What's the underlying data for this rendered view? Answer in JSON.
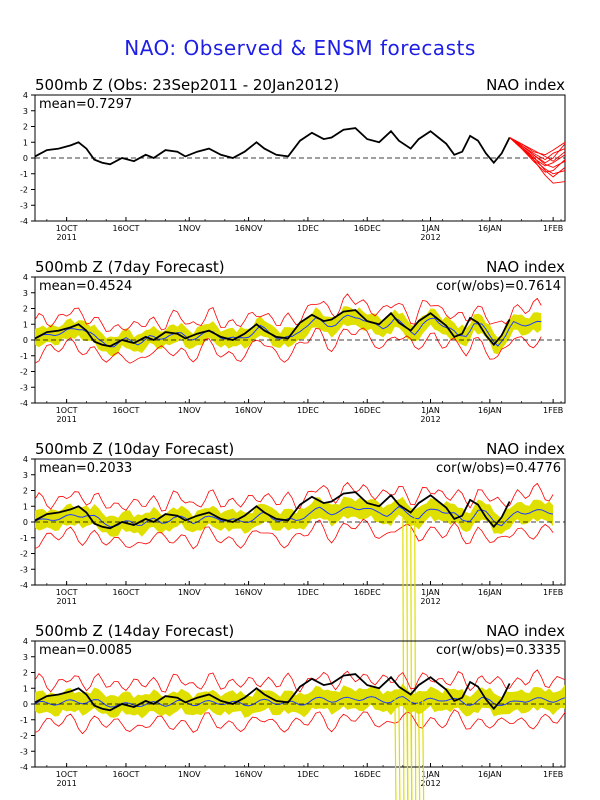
{
  "title": "NAO: Observed & ENSM forecasts",
  "colors": {
    "title": "#1e1ee6",
    "observed": "#000000",
    "members": "#ff0000",
    "spread": "#e0e000",
    "ensemble_mean": "#1e3cff",
    "zero_line": "#000000"
  },
  "x_axis": {
    "date_start": "23Sep2011",
    "ticks": [
      {
        "day": 8,
        "label": "1OCT",
        "year": "2011"
      },
      {
        "day": 23,
        "label": "16OCT",
        "year": ""
      },
      {
        "day": 39,
        "label": "1NOV",
        "year": ""
      },
      {
        "day": 54,
        "label": "16NOV",
        "year": ""
      },
      {
        "day": 69,
        "label": "1DEC",
        "year": ""
      },
      {
        "day": 84,
        "label": "16DEC",
        "year": ""
      },
      {
        "day": 100,
        "label": "1JAN",
        "year": "2012"
      },
      {
        "day": 115,
        "label": "16JAN",
        "year": ""
      },
      {
        "day": 131,
        "label": "1FEB",
        "year": ""
      }
    ],
    "range": [
      0,
      134
    ]
  },
  "observed_series": {
    "day": [
      0,
      3,
      6,
      9,
      11,
      13,
      15,
      17,
      19,
      22,
      25,
      28,
      30,
      33,
      36,
      38,
      41,
      44,
      47,
      50,
      53,
      56,
      58,
      61,
      64,
      67,
      70,
      73,
      75,
      78,
      81,
      84,
      87,
      90,
      92,
      95,
      97,
      100,
      102,
      104,
      106,
      108,
      110,
      112,
      114,
      116,
      118,
      120
    ],
    "value": [
      0.1,
      0.5,
      0.6,
      0.8,
      1.0,
      0.6,
      -0.1,
      -0.3,
      -0.4,
      0.0,
      -0.2,
      0.2,
      0.0,
      0.5,
      0.4,
      0.1,
      0.4,
      0.6,
      0.2,
      0.0,
      0.4,
      1.0,
      0.6,
      0.2,
      0.1,
      1.1,
      1.6,
      1.2,
      1.3,
      1.8,
      1.9,
      1.2,
      1.0,
      1.7,
      1.1,
      0.6,
      1.2,
      1.7,
      1.3,
      0.9,
      0.2,
      0.4,
      1.4,
      1.1,
      0.3,
      -0.3,
      0.3,
      1.3
    ]
  },
  "chart_data": [
    {
      "type": "line",
      "title": "500mb Z (Obs: 23Sep2011 - 20Jan2012)",
      "right_label": "NAO index",
      "mean_label": "mean=0.7297",
      "cor_label": "",
      "ylim": [
        -4,
        4
      ],
      "yticks": [
        -4,
        -3,
        -2,
        -1,
        0,
        1,
        2,
        3,
        4
      ],
      "xlabel": "",
      "ylabel": "",
      "kind": "observed",
      "forecast_members": {
        "start_day": 120,
        "start_value": 1.3,
        "days": [
          120,
          123,
          126,
          129,
          131,
          134
        ],
        "members": [
          [
            1.3,
            0.8,
            0.2,
            -0.4,
            -0.6,
            -0.2
          ],
          [
            1.3,
            0.7,
            0.1,
            -0.8,
            -1.2,
            -0.6
          ],
          [
            1.3,
            0.6,
            -0.1,
            -1.1,
            -1.6,
            -1.5
          ],
          [
            1.3,
            0.9,
            0.4,
            0.2,
            0.5,
            1.0
          ],
          [
            1.3,
            0.8,
            0.3,
            -0.1,
            0.3,
            0.6
          ],
          [
            1.3,
            0.7,
            0.0,
            -0.5,
            -0.3,
            0.2
          ],
          [
            1.3,
            0.6,
            -0.2,
            -0.9,
            -0.8,
            -0.1
          ],
          [
            1.3,
            0.9,
            0.5,
            0.1,
            -0.2,
            0.4
          ],
          [
            1.3,
            0.8,
            0.2,
            -0.3,
            0.0,
            0.9
          ],
          [
            1.3,
            0.7,
            -0.1,
            -0.7,
            -1.0,
            -0.8
          ]
        ]
      }
    },
    {
      "type": "line",
      "title": "500mb Z (7day Forecast)",
      "right_label": "NAO index",
      "mean_label": "mean=0.4524",
      "cor_label": "cor(w/obs)=0.7614",
      "ylim": [
        -4,
        4
      ],
      "yticks": [
        -4,
        -3,
        -2,
        -1,
        0,
        1,
        2,
        3,
        4
      ],
      "xlabel": "",
      "ylabel": "",
      "kind": "forecast",
      "end_day": 128,
      "spread": 0.55,
      "member_spread": 1.0,
      "mean_factor": 0.8,
      "mean_lag": 1,
      "spikes": []
    },
    {
      "type": "line",
      "title": "500mb Z (10day Forecast)",
      "right_label": "NAO index",
      "mean_label": "mean=0.2033",
      "cor_label": "cor(w/obs)=0.4776",
      "ylim": [
        -4,
        4
      ],
      "yticks": [
        -4,
        -3,
        -2,
        -1,
        0,
        1,
        2,
        3,
        4
      ],
      "xlabel": "",
      "ylabel": "",
      "kind": "forecast",
      "end_day": 131,
      "spread": 0.6,
      "member_spread": 1.2,
      "mean_factor": 0.5,
      "mean_lag": 2,
      "spikes": [
        {
          "day": 93,
          "value": -15
        },
        {
          "day": 94,
          "value": -15
        },
        {
          "day": 95,
          "value": -15
        },
        {
          "day": 96,
          "value": -15
        }
      ]
    },
    {
      "type": "line",
      "title": "500mb Z (14day Forecast)",
      "right_label": "NAO index",
      "mean_label": "mean=0.0085",
      "cor_label": "cor(w/obs)=0.3335",
      "ylim": [
        -4,
        4
      ],
      "yticks": [
        -4,
        -3,
        -2,
        -1,
        0,
        1,
        2,
        3,
        4
      ],
      "xlabel": "",
      "ylabel": "",
      "kind": "forecast",
      "end_day": 134,
      "spread": 0.65,
      "member_spread": 1.3,
      "mean_factor": 0.2,
      "mean_lag": 3,
      "spikes": [
        {
          "day": 91,
          "value": -15
        },
        {
          "day": 92,
          "value": -15
        },
        {
          "day": 94,
          "value": -15
        },
        {
          "day": 95,
          "value": -15
        },
        {
          "day": 97,
          "value": -15
        },
        {
          "day": 98,
          "value": -15
        }
      ]
    }
  ]
}
